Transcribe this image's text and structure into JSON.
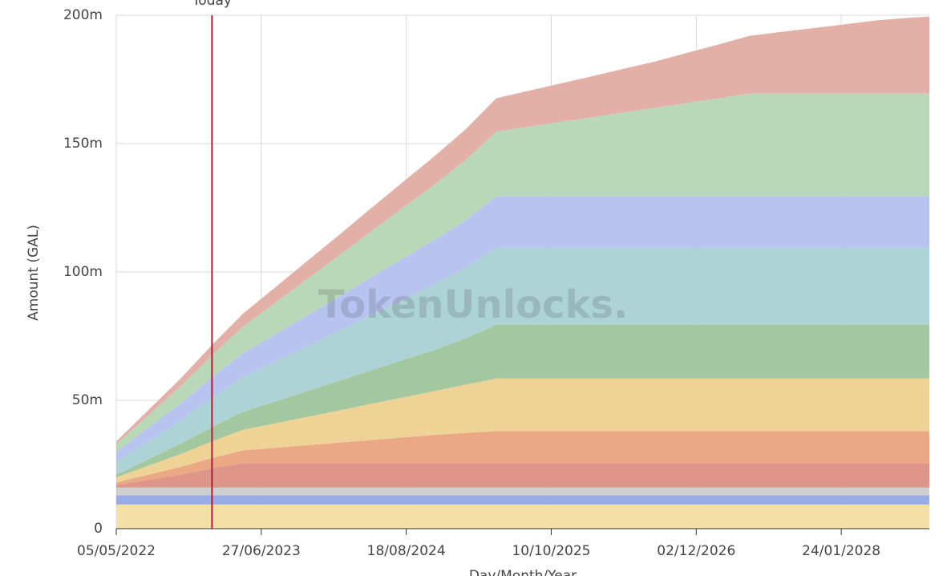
{
  "chart_data": {
    "type": "stacked_area",
    "y_label": "Amount (GAL)",
    "x_label": "Day/Month/Year",
    "watermark": "TokenUnlocks.",
    "today": {
      "x": "2023-02-05",
      "label": "Today",
      "color": "#a0233a"
    },
    "x": [
      "2022-05-05",
      "2022-08-05",
      "2022-11-05",
      "2023-02-05",
      "2023-05-05",
      "2023-08-05",
      "2023-11-05",
      "2024-02-05",
      "2024-05-05",
      "2024-08-05",
      "2024-11-05",
      "2025-02-05",
      "2025-05-05",
      "2025-08-05",
      "2025-11-05",
      "2026-02-05",
      "2026-05-05",
      "2026-08-05",
      "2026-11-05",
      "2027-02-05",
      "2027-05-05",
      "2027-08-05",
      "2027-11-05",
      "2028-02-05",
      "2028-05-05",
      "2028-08-05",
      "2028-10-04"
    ],
    "xlim": [
      "2022-05-05",
      "2028-10-04"
    ],
    "xticks": [
      {
        "value": "2022-05-05",
        "label": "05/05/2022"
      },
      {
        "value": "2023-06-27",
        "label": "27/06/2023"
      },
      {
        "value": "2024-08-18",
        "label": "18/08/2024"
      },
      {
        "value": "2025-10-10",
        "label": "10/10/2025"
      },
      {
        "value": "2026-12-02",
        "label": "02/12/2026"
      },
      {
        "value": "2028-01-24",
        "label": "24/01/2028"
      }
    ],
    "ylim": [
      0,
      200
    ],
    "yticks": [
      {
        "value": 0,
        "label": "0"
      },
      {
        "value": 50,
        "label": "50m"
      },
      {
        "value": 100,
        "label": "100m"
      },
      {
        "value": 150,
        "label": "150m"
      },
      {
        "value": 200,
        "label": "200m"
      }
    ],
    "grid": true,
    "series": [
      {
        "color": "#f4e0a6",
        "values": [
          9.4,
          9.4,
          9.4,
          9.4,
          9.4,
          9.4,
          9.4,
          9.4,
          9.4,
          9.4,
          9.4,
          9.4,
          9.4,
          9.4,
          9.4,
          9.4,
          9.4,
          9.4,
          9.4,
          9.4,
          9.4,
          9.4,
          9.4,
          9.4,
          9.4,
          9.4,
          9.4
        ]
      },
      {
        "color": "#9aace8",
        "values": [
          3.6,
          3.6,
          3.6,
          3.6,
          3.6,
          3.6,
          3.6,
          3.6,
          3.6,
          3.6,
          3.6,
          3.6,
          3.6,
          3.6,
          3.6,
          3.6,
          3.6,
          3.6,
          3.6,
          3.6,
          3.6,
          3.6,
          3.6,
          3.6,
          3.6,
          3.6,
          3.6
        ]
      },
      {
        "color": "#cfcfcf",
        "values": [
          3,
          3,
          3,
          3,
          3,
          3,
          3,
          3,
          3,
          3,
          3,
          3,
          3,
          3,
          3,
          3,
          3,
          3,
          3,
          3,
          3,
          3,
          3,
          3,
          3,
          3,
          3
        ]
      },
      {
        "color": "#df968a",
        "values": [
          1,
          3,
          5,
          7.5,
          9.5,
          9.5,
          9.5,
          9.5,
          9.5,
          9.5,
          9.5,
          9.5,
          9.5,
          9.5,
          9.5,
          9.5,
          9.5,
          9.5,
          9.5,
          9.5,
          9.5,
          9.5,
          9.5,
          9.5,
          9.5,
          9.5,
          9.5
        ]
      },
      {
        "color": "#eaa984",
        "values": [
          1,
          2,
          3,
          4,
          5,
          6,
          7,
          8,
          9,
          10,
          11,
          11.8,
          12.5,
          12.5,
          12.5,
          12.5,
          12.5,
          12.5,
          12.5,
          12.5,
          12.5,
          12.5,
          12.5,
          12.5,
          12.5,
          12.5,
          12.5
        ]
      },
      {
        "color": "#efd396",
        "values": [
          2,
          3.5,
          5,
          6.5,
          8,
          9.5,
          11,
          12.5,
          14,
          15.5,
          17,
          18.8,
          20.5,
          20.5,
          20.5,
          20.5,
          20.5,
          20.5,
          20.5,
          20.5,
          20.5,
          20.5,
          20.5,
          20.5,
          20.5,
          20.5,
          20.5
        ]
      },
      {
        "color": "#a3c79e",
        "values": [
          1,
          2.5,
          4,
          5.5,
          7,
          8.5,
          10,
          11.5,
          13,
          14.5,
          16,
          18,
          21,
          21,
          21,
          21,
          21,
          21,
          21,
          21,
          21,
          21,
          21,
          21,
          21,
          21,
          21
        ]
      },
      {
        "color": "#aed3d6",
        "values": [
          5,
          7,
          9,
          11.5,
          13.5,
          15.5,
          17.5,
          19.5,
          21.5,
          23.5,
          25.5,
          27.5,
          30,
          30,
          30,
          30,
          30,
          30,
          30,
          30,
          30,
          30,
          30,
          30,
          30,
          30,
          30
        ]
      },
      {
        "color": "#b7c4ef",
        "values": [
          4,
          5.3,
          6.6,
          8,
          9.3,
          10.6,
          12,
          13.3,
          14.6,
          16,
          17.3,
          18.6,
          20,
          20,
          20,
          20,
          20,
          20,
          20,
          20,
          20,
          20,
          20,
          20,
          20,
          20,
          20
        ]
      },
      {
        "color": "#b9d8b8",
        "values": [
          3,
          4.85,
          6.7,
          8.55,
          10.4,
          12.25,
          14.1,
          15.95,
          17.8,
          19.65,
          21.5,
          23.35,
          25.2,
          27.05,
          28.9,
          30.75,
          32.6,
          34.45,
          36.3,
          38.15,
          40,
          40,
          40,
          40,
          40,
          40,
          40
        ]
      },
      {
        "color": "#e3b0a8",
        "values": [
          1,
          2,
          3,
          4,
          5,
          6,
          7,
          8,
          9,
          10,
          11,
          12,
          13,
          14,
          15,
          16,
          17,
          18,
          19.5,
          21,
          22.5,
          24,
          25.5,
          27,
          28.5,
          29.5,
          30
        ]
      }
    ]
  }
}
